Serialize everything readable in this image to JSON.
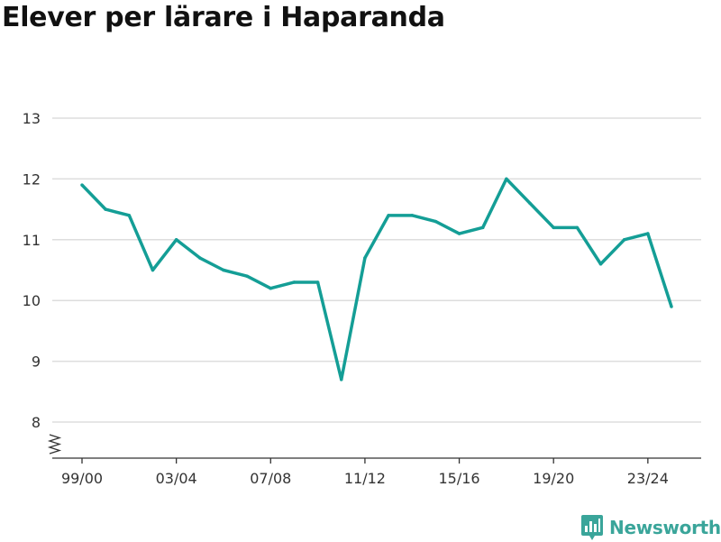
{
  "chart_data": {
    "type": "line",
    "title": "Elever per lärare i Haparanda",
    "xlabel": "",
    "ylabel": "",
    "x": [
      "99/00",
      "00/01",
      "01/02",
      "02/03",
      "03/04",
      "04/05",
      "05/06",
      "06/07",
      "07/08",
      "08/09",
      "09/10",
      "10/11",
      "11/12",
      "12/13",
      "13/14",
      "14/15",
      "15/16",
      "16/17",
      "17/18",
      "18/19",
      "19/20",
      "20/21",
      "21/22",
      "22/23",
      "23/24",
      "24/25"
    ],
    "x_tick_labels": [
      "99/00",
      "03/04",
      "07/08",
      "11/12",
      "15/16",
      "19/20",
      "23/24"
    ],
    "y_tick_labels": [
      "8",
      "9",
      "10",
      "11",
      "12",
      "13"
    ],
    "values": [
      11.9,
      11.5,
      11.4,
      10.5,
      11.0,
      10.7,
      10.5,
      10.4,
      10.2,
      10.3,
      10.3,
      8.7,
      10.7,
      11.4,
      11.4,
      11.3,
      11.1,
      11.2,
      12.0,
      11.6,
      11.2,
      11.2,
      10.6,
      11.0,
      11.1,
      9.9
    ],
    "ylim": [
      8,
      13
    ],
    "y_axis_broken": true,
    "grid": true,
    "line_color": "#149e96"
  },
  "branding": {
    "name": "Newsworthy",
    "color": "#3aa59a",
    "icon": "bar-chart-icon"
  }
}
